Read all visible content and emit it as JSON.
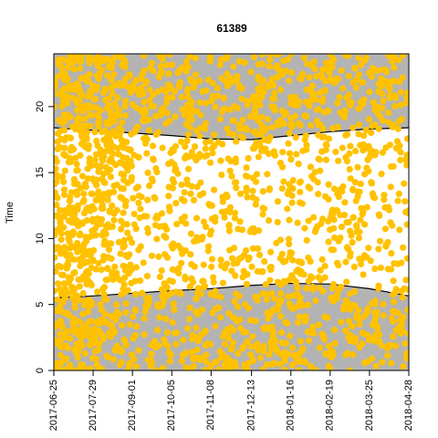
{
  "chart_data": {
    "type": "scatter",
    "title": "61389",
    "xlabel": "",
    "ylabel": "Time",
    "x_type": "date",
    "xlim": [
      "2017-06-25",
      "2018-04-28"
    ],
    "ylim": [
      0,
      24
    ],
    "x_ticks": [
      "2017-06-25",
      "2017-07-29",
      "2017-09-01",
      "2017-10-05",
      "2017-11-08",
      "2017-12-13",
      "2018-01-16",
      "2018-02-19",
      "2018-03-25",
      "2018-04-28"
    ],
    "y_ticks": [
      0,
      5,
      10,
      15,
      20
    ],
    "colors": {
      "points": "#FFC200",
      "night_band": "#B3B3B3",
      "day_band": "#FFFFFF",
      "twilight_lines": "#000000"
    },
    "sunrise_curve": {
      "x": [
        "2017-06-25",
        "2017-07-29",
        "2017-09-01",
        "2017-10-05",
        "2017-11-08",
        "2017-12-13",
        "2018-01-16",
        "2018-02-19",
        "2018-03-25",
        "2018-04-28"
      ],
      "y": [
        5.5,
        5.65,
        5.85,
        6.05,
        6.2,
        6.45,
        6.6,
        6.55,
        6.2,
        5.65
      ]
    },
    "sunset_curve": {
      "x": [
        "2017-06-25",
        "2017-07-29",
        "2017-09-01",
        "2017-10-05",
        "2017-11-08",
        "2017-12-13",
        "2018-01-16",
        "2018-02-19",
        "2018-03-25",
        "2018-04-28"
      ],
      "y": [
        18.4,
        18.2,
        18.0,
        17.8,
        17.55,
        17.5,
        17.8,
        18.1,
        18.3,
        18.4
      ]
    },
    "series": [
      {
        "points_generated": true,
        "seed": 61389
      }
    ],
    "grid": false,
    "legend": "none"
  }
}
